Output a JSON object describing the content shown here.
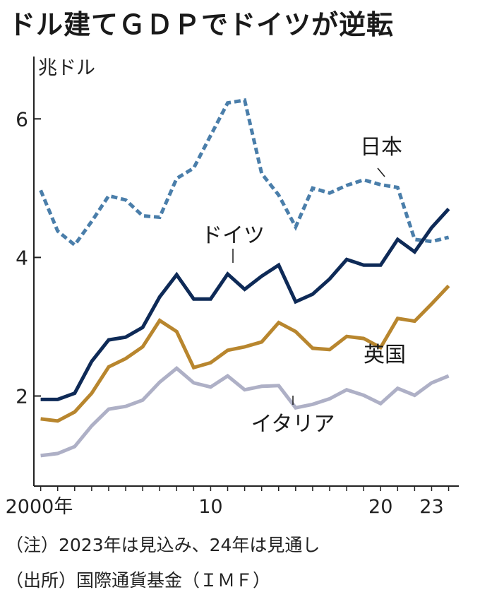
{
  "title": "ドル建てＧＤＰでドイツが逆転",
  "notes": {
    "note": "（注）2023年は見込み、24年は見通し",
    "source": "（出所）国際通貨基金（ＩＭＦ）"
  },
  "colors": {
    "japan": "#4a7eaa",
    "germany": "#0e2a57",
    "uk": "#b8862e",
    "italy": "#aeb0c6",
    "axis": "#222222"
  },
  "chart_data": {
    "type": "line",
    "ylabel": "兆ドル",
    "ylim": [
      0.7,
      6.9
    ],
    "yticks": [
      2,
      4,
      6
    ],
    "xlim": [
      1999.6,
      2024.6
    ],
    "xticks": [
      {
        "value": 2000,
        "label": "2000年"
      },
      {
        "value": 2010,
        "label": "10"
      },
      {
        "value": 2020,
        "label": "20"
      },
      {
        "value": 2023,
        "label": "23"
      }
    ],
    "x": [
      2000,
      2001,
      2002,
      2003,
      2004,
      2005,
      2006,
      2007,
      2008,
      2009,
      2010,
      2011,
      2012,
      2013,
      2014,
      2015,
      2016,
      2017,
      2018,
      2019,
      2020,
      2021,
      2022,
      2023,
      2024
    ],
    "series": [
      {
        "name": "日本",
        "key": "japan",
        "dashed": true,
        "values": [
          4.97,
          4.38,
          4.18,
          4.52,
          4.89,
          4.83,
          4.6,
          4.58,
          5.14,
          5.29,
          5.76,
          6.23,
          6.27,
          5.21,
          4.9,
          4.44,
          5.0,
          4.93,
          5.04,
          5.12,
          5.05,
          5.01,
          4.26,
          4.23,
          4.29
        ]
      },
      {
        "name": "ドイツ",
        "key": "germany",
        "dashed": false,
        "values": [
          1.95,
          1.95,
          2.04,
          2.5,
          2.81,
          2.85,
          2.99,
          3.43,
          3.75,
          3.4,
          3.4,
          3.76,
          3.54,
          3.73,
          3.89,
          3.36,
          3.47,
          3.69,
          3.97,
          3.89,
          3.89,
          4.26,
          4.08,
          4.43,
          4.7
        ]
      },
      {
        "name": "英国",
        "key": "uk",
        "dashed": false,
        "values": [
          1.67,
          1.64,
          1.77,
          2.04,
          2.42,
          2.54,
          2.71,
          3.09,
          2.93,
          2.41,
          2.48,
          2.66,
          2.71,
          2.78,
          3.06,
          2.93,
          2.69,
          2.67,
          2.86,
          2.83,
          2.7,
          3.12,
          3.08,
          3.33,
          3.59
        ]
      },
      {
        "name": "イタリア",
        "key": "italy",
        "dashed": false,
        "values": [
          1.14,
          1.17,
          1.27,
          1.57,
          1.81,
          1.85,
          1.94,
          2.2,
          2.4,
          2.19,
          2.13,
          2.29,
          2.09,
          2.14,
          2.15,
          1.83,
          1.88,
          1.96,
          2.09,
          2.01,
          1.89,
          2.11,
          2.01,
          2.19,
          2.29
        ]
      }
    ],
    "annotations": [
      {
        "series": "japan",
        "text": "日本"
      },
      {
        "series": "germany",
        "text": "ドイツ"
      },
      {
        "series": "uk",
        "text": "英国"
      },
      {
        "series": "italy",
        "text": "イタリア"
      }
    ],
    "grid": false,
    "legend": "none"
  }
}
